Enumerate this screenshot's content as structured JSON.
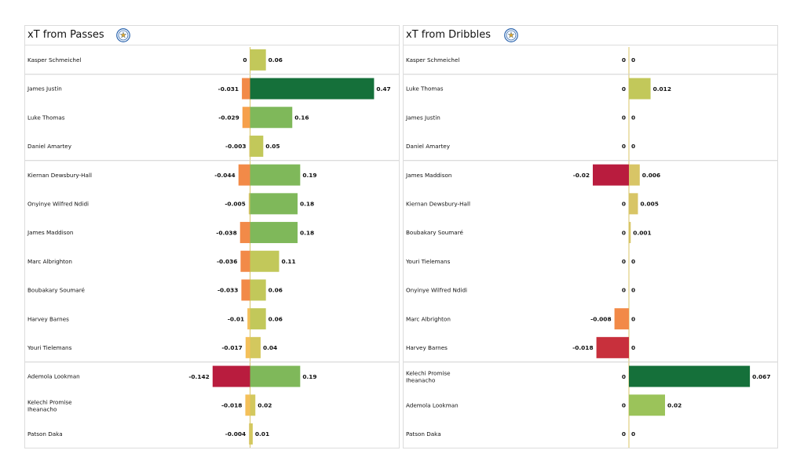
{
  "chart_data": [
    {
      "type": "bar",
      "orientation": "horizontal-diverging",
      "title": "xT from Passes",
      "categories": [
        "Kasper Schmeichel",
        "James Justin",
        "Luke Thomas",
        "Daniel Amartey",
        "Kiernan Dewsbury-Hall",
        "Onyinye Wilfred Ndidi",
        "James Maddison",
        "Marc Albrighton",
        "Boubakary Soumaré",
        "Harvey Barnes",
        "Youri Tielemans",
        "Ademola Lookman",
        "Kelechi Promise Iheanacho",
        "Patson Daka"
      ],
      "series": [
        {
          "values": [
            0,
            -0.031,
            -0.029,
            -0.003,
            -0.044,
            -0.005,
            -0.038,
            -0.036,
            -0.033,
            -0.01,
            -0.017,
            -0.142,
            -0.018,
            -0.004
          ]
        },
        {
          "values": [
            0.06,
            0.47,
            0.16,
            0.05,
            0.19,
            0.18,
            0.18,
            0.11,
            0.06,
            0.06,
            0.04,
            0.19,
            0.02,
            0.01
          ]
        }
      ],
      "neg_labels": [
        "0",
        "-0.031",
        "-0.029",
        "-0.003",
        "-0.044",
        "-0.005",
        "-0.038",
        "-0.036",
        "-0.033",
        "-0.01",
        "-0.017",
        "-0.142",
        "-0.018",
        "-0.004"
      ],
      "pos_labels": [
        "0.06",
        "0.47",
        "0.16",
        "0.05",
        "0.19",
        "0.18",
        "0.18",
        "0.11",
        "0.06",
        "0.06",
        "0.04",
        "0.19",
        "0.02",
        "0.01"
      ],
      "group_breaks_after": [
        0,
        3,
        10
      ],
      "xlim": [
        -0.142,
        0.47
      ]
    },
    {
      "type": "bar",
      "orientation": "horizontal-diverging",
      "title": "xT from Dribbles",
      "categories": [
        "Kasper Schmeichel",
        "Luke Thomas",
        "James Justin",
        "Daniel Amartey",
        "James Maddison",
        "Kiernan Dewsbury-Hall",
        "Boubakary Soumaré",
        "Youri Tielemans",
        "Onyinye Wilfred Ndidi",
        "Marc Albrighton",
        "Harvey Barnes",
        "Kelechi Promise Iheanacho",
        "Ademola Lookman",
        "Patson Daka"
      ],
      "series": [
        {
          "values": [
            0,
            0,
            0,
            0,
            -0.02,
            0,
            0,
            0,
            0,
            -0.008,
            -0.018,
            0,
            0,
            0
          ]
        },
        {
          "values": [
            0,
            0.012,
            0,
            0,
            0.006,
            0.005,
            0.001,
            0,
            0,
            0,
            0,
            0.067,
            0.02,
            0
          ]
        }
      ],
      "neg_labels": [
        "0",
        "0",
        "0",
        "0",
        "-0.02",
        "0",
        "0",
        "0",
        "0",
        "-0.008",
        "-0.018",
        "0",
        "0",
        "0"
      ],
      "pos_labels": [
        "0",
        "0.012",
        "0",
        "0",
        "0.006",
        "0.005",
        "0.001",
        "0",
        "0",
        "0",
        "0",
        "0.067",
        "0.02",
        "0"
      ],
      "group_breaks_after": [
        0,
        3,
        10
      ],
      "xlim": [
        -0.062,
        0.067
      ]
    }
  ],
  "colors": {
    "tiny": "#d8c566",
    "neg_small": "#f4c05a",
    "neg_mid": "#f6a04c",
    "neg_large": "#f28a48",
    "neg_high": "#c8303c",
    "neg_max": "#b91c3e",
    "pos_low": "#d3c85e",
    "pos_mid": "#c2c85a",
    "pos_green": "#7fb85a",
    "pos_good": "#9bc35a",
    "pos_max": "#15703a",
    "label": "#111111",
    "divider": "#d0d0d0"
  },
  "icons": {
    "crest": "leicester-city-crest-icon"
  }
}
